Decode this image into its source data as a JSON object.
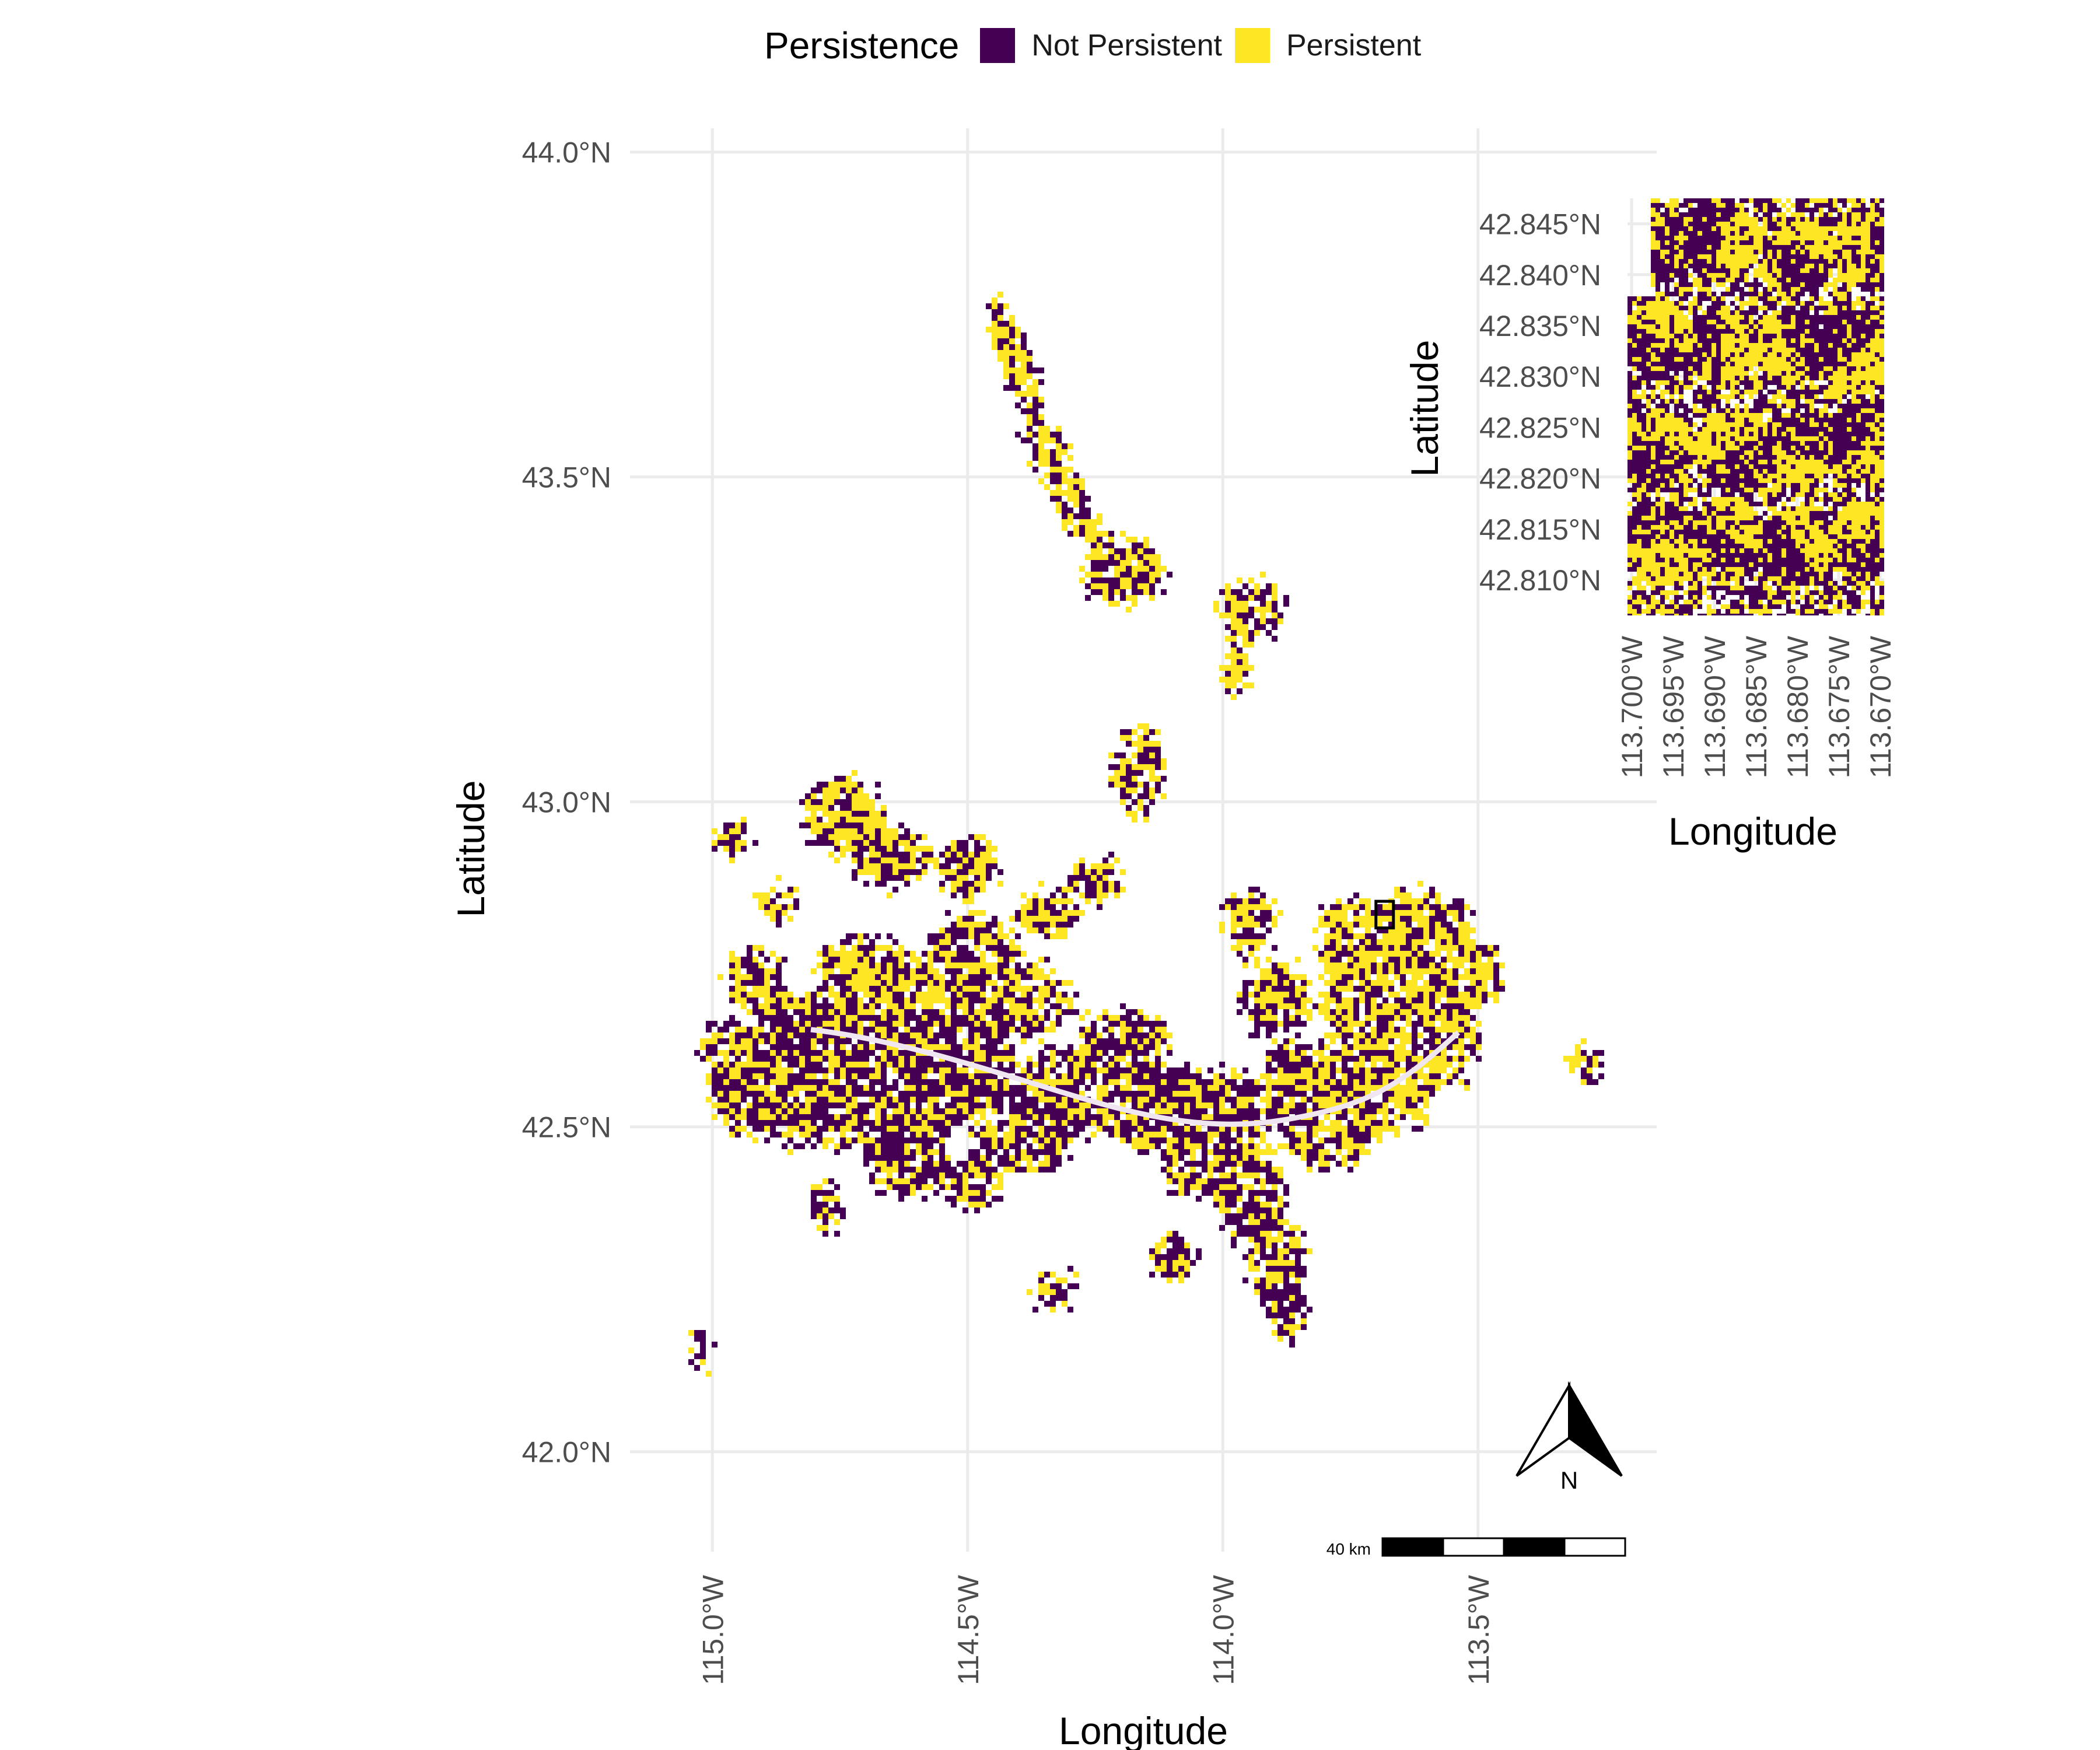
{
  "legend": {
    "title": "Persistence",
    "items": [
      {
        "label": "Not Persistent",
        "color": "#440154"
      },
      {
        "label": "Persistent",
        "color": "#FDE725"
      }
    ]
  },
  "main_map": {
    "xlabel": "Longitude",
    "ylabel": "Latitude",
    "x_ticks": [
      {
        "value": -115.0,
        "label": "115.0°W"
      },
      {
        "value": -114.5,
        "label": "114.5°W"
      },
      {
        "value": -114.0,
        "label": "114.0°W"
      },
      {
        "value": -113.5,
        "label": "113.5°W"
      }
    ],
    "y_ticks": [
      {
        "value": 44.0,
        "label": "44.0°N"
      },
      {
        "value": 43.5,
        "label": "43.5°N"
      },
      {
        "value": 43.0,
        "label": "43.0°N"
      },
      {
        "value": 42.5,
        "label": "42.5°N"
      },
      {
        "value": 42.0,
        "label": "42.0°N"
      }
    ],
    "xlim": [
      -115.15,
      -113.15
    ],
    "ylim": [
      41.9,
      44.05
    ],
    "scale_bar_label": "40 km",
    "north_arrow_label": "N",
    "inset_extent": {
      "lon": [
        -113.7,
        -113.669
      ],
      "lat": [
        42.806,
        42.847
      ]
    }
  },
  "inset_map": {
    "xlabel": "Longitude",
    "ylabel": "Latitude",
    "x_ticks": [
      {
        "value": -113.7,
        "label": "113.700°W"
      },
      {
        "value": -113.695,
        "label": "113.695°W"
      },
      {
        "value": -113.69,
        "label": "113.690°W"
      },
      {
        "value": -113.685,
        "label": "113.685°W"
      },
      {
        "value": -113.68,
        "label": "113.680°W"
      },
      {
        "value": -113.675,
        "label": "113.675°W"
      },
      {
        "value": -113.67,
        "label": "113.670°W"
      }
    ],
    "y_ticks": [
      {
        "value": 42.845,
        "label": "42.845°N"
      },
      {
        "value": 42.84,
        "label": "42.840°N"
      },
      {
        "value": 42.835,
        "label": "42.835°N"
      },
      {
        "value": 42.83,
        "label": "42.830°N"
      },
      {
        "value": 42.825,
        "label": "42.825°N"
      },
      {
        "value": 42.82,
        "label": "42.820°N"
      },
      {
        "value": 42.815,
        "label": "42.815°N"
      },
      {
        "value": 42.81,
        "label": "42.810°N"
      }
    ],
    "xlim": [
      -113.7005,
      -113.6695
    ],
    "ylim": [
      42.8065,
      42.8475
    ]
  }
}
